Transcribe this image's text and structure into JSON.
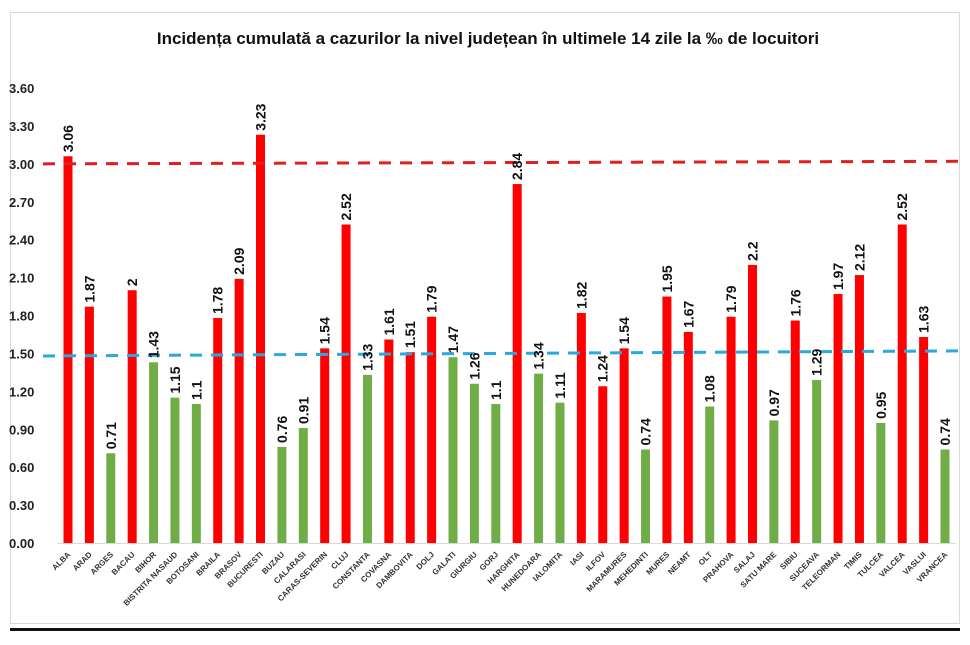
{
  "chart_data": {
    "type": "bar",
    "title": "Incidența cumulată a cazurilor la nivel județean în ultimele 14 zile la ‰ de locuitori",
    "xlabel": "",
    "ylabel": "",
    "ylim": [
      0,
      3.6
    ],
    "yticks": [
      "0.00",
      "0.30",
      "0.60",
      "0.90",
      "1.20",
      "1.50",
      "1.80",
      "2.10",
      "2.40",
      "2.70",
      "3.00",
      "3.30",
      "3.60"
    ],
    "grid": false,
    "legend": "none",
    "colors": {
      "above_threshold": "#ff0000",
      "below_threshold": "#70ad47",
      "red_line": "#e02020",
      "blue_line": "#2aa8e0"
    },
    "reference_lines": [
      {
        "name": "red-threshold",
        "start": 3.0,
        "end": 3.02,
        "color": "#e02020",
        "style": "dashed"
      },
      {
        "name": "blue-threshold",
        "start": 1.48,
        "end": 1.52,
        "color": "#2aa8e0",
        "style": "dashed"
      }
    ],
    "categories": [
      "ALBA",
      "ARAD",
      "ARGES",
      "BACAU",
      "BIHOR",
      "BISTRITA NASAUD",
      "BOTOSANI",
      "BRAILA",
      "BRASOV",
      "BUCURESTI",
      "BUZAU",
      "CALARASI",
      "CARAS-SEVERIN",
      "CLUJ",
      "CONSTANTA",
      "COVASNA",
      "DAMBOVITA",
      "DOLJ",
      "GALATI",
      "GIURGIU",
      "GORJ",
      "HARGHITA",
      "HUNEDOARA",
      "IALOMITA",
      "IASI",
      "ILFOV",
      "MARAMURES",
      "MEHEDINTI",
      "MURES",
      "NEAMT",
      "OLT",
      "PRAHOVA",
      "SALAJ",
      "SATU MARE",
      "SIBIU",
      "SUCEAVA",
      "TELEORMAN",
      "TIMIS",
      "TULCEA",
      "VALCEA",
      "VASLUI",
      "VRANCEA"
    ],
    "values": [
      3.06,
      1.87,
      0.71,
      2,
      1.43,
      1.15,
      1.1,
      1.78,
      2.09,
      3.23,
      0.76,
      0.91,
      1.54,
      2.52,
      1.33,
      1.61,
      1.51,
      1.79,
      1.47,
      1.26,
      1.1,
      2.84,
      1.34,
      1.11,
      1.82,
      1.24,
      1.54,
      0.74,
      1.95,
      1.67,
      1.08,
      1.79,
      2.2,
      0.97,
      1.76,
      1.29,
      1.97,
      2.12,
      0.95,
      2.52,
      1.63,
      0.74
    ],
    "labels": [
      "3.06",
      "1.87",
      "0.71",
      "2",
      "1.43",
      "1.15",
      "1.1",
      "1.78",
      "2.09",
      "3.23",
      "0.76",
      "0.91",
      "1.54",
      "2.52",
      "1.33",
      "1.61",
      "1.51",
      "1.79",
      "1.47",
      "1.26",
      "1.1",
      "2.84",
      "1.34",
      "1.11",
      "1.82",
      "1.24",
      "1.54",
      "0.74",
      "1.95",
      "1.67",
      "1.08",
      "1.79",
      "2.2",
      "0.97",
      "1.76",
      "1.29",
      "1.97",
      "2.12",
      "0.95",
      "2.52",
      "1.63",
      "0.74"
    ],
    "bar_colors": [
      "red",
      "red",
      "green",
      "red",
      "green",
      "green",
      "green",
      "red",
      "red",
      "red",
      "green",
      "green",
      "red",
      "red",
      "green",
      "red",
      "red",
      "red",
      "green",
      "green",
      "green",
      "red",
      "green",
      "green",
      "red",
      "red",
      "red",
      "green",
      "red",
      "red",
      "green",
      "red",
      "red",
      "green",
      "red",
      "green",
      "red",
      "red",
      "green",
      "red",
      "red",
      "green"
    ]
  }
}
